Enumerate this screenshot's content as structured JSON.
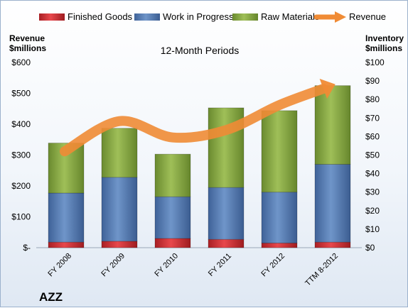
{
  "chart_data": {
    "type": "bar",
    "title": "12-Month Periods",
    "company": "AZZ",
    "categories": [
      "FY 2008",
      "FY 2009",
      "FY 2010",
      "FY 2011",
      "FY 2012",
      "TTM 8-2012"
    ],
    "series": [
      {
        "name": "Finished Goods",
        "type": "bar",
        "axis": "right",
        "color": "#d9363a",
        "values": [
          3,
          3.5,
          5,
          4.5,
          2.5,
          3
        ]
      },
      {
        "name": "Work in Progress",
        "type": "bar",
        "axis": "right",
        "color": "#5b82b9",
        "values": [
          26.5,
          34.5,
          22.5,
          28,
          27.5,
          42
        ]
      },
      {
        "name": "Raw Materials",
        "type": "bar",
        "axis": "right",
        "color": "#8fb04a",
        "values": [
          27,
          26.5,
          23,
          43,
          44,
          42.5
        ]
      },
      {
        "name": "Revenue",
        "type": "line",
        "axis": "left",
        "color": "#f08b35",
        "values": [
          312,
          410,
          357,
          381,
          462,
          526
        ]
      }
    ],
    "left_axis": {
      "label_line1": "Revenue",
      "label_line2": "$millions",
      "range": [
        0,
        600
      ],
      "ticks": [
        "$-",
        "$100",
        "$200",
        "$300",
        "$400",
        "$500",
        "$600"
      ]
    },
    "right_axis": {
      "label_line1": "Inventory",
      "label_line2": "$millions",
      "range": [
        0,
        100
      ],
      "ticks": [
        "$0",
        "$10",
        "$20",
        "$30",
        "$40",
        "$50",
        "$60",
        "$70",
        "$80",
        "$90",
        "$100"
      ]
    },
    "legend_position": "top",
    "grid": false
  }
}
